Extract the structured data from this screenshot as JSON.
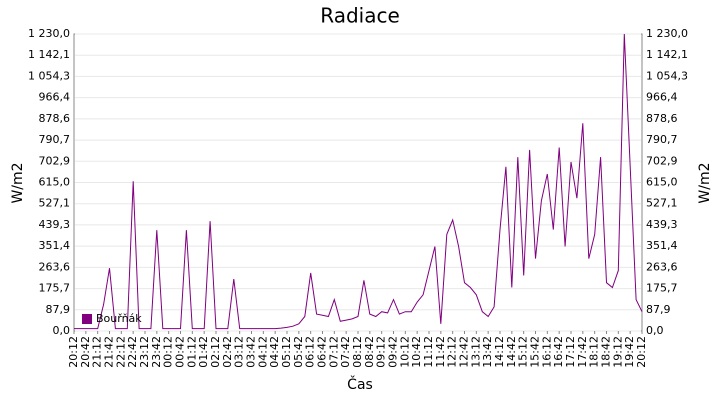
{
  "chart_data": {
    "type": "line",
    "title": "Radiace",
    "ylabel": "W/m2",
    "y2label": "W/m2",
    "xlabel": "Čas",
    "categories": [
      "20:12",
      null,
      "20:42",
      null,
      "21:12",
      null,
      "21:42",
      null,
      "22:12",
      null,
      "22:42",
      null,
      "23:12",
      null,
      "23:42",
      null,
      "00:12",
      null,
      "00:42",
      null,
      "01:12",
      null,
      "01:42",
      null,
      "02:12",
      null,
      "02:42",
      null,
      "03:12",
      null,
      "03:42",
      null,
      "04:12",
      null,
      "04:42",
      null,
      "05:12",
      null,
      "05:42",
      null,
      "06:12",
      null,
      "06:42",
      null,
      "07:12",
      null,
      "07:42",
      null,
      "08:12",
      null,
      "08:42",
      null,
      "09:12",
      null,
      "09:42",
      null,
      "10:12",
      null,
      "10:42",
      null,
      "11:12",
      null,
      "11:42",
      null,
      "12:12",
      null,
      "12:42",
      null,
      "13:12",
      null,
      "13:42",
      null,
      "14:12",
      null,
      "14:42",
      null,
      "15:12",
      null,
      "15:42",
      null,
      "16:12",
      null,
      "16:42",
      null,
      "17:12",
      null,
      "17:42",
      null,
      "18:12",
      null,
      "18:42",
      null,
      "19:12",
      null,
      "19:42",
      null,
      "20:12"
    ],
    "series": [
      {
        "name": "Bouřňák",
        "color": "#800080",
        "values": [
          10,
          10,
          10,
          10,
          10,
          110,
          260,
          10,
          10,
          10,
          620,
          10,
          10,
          10,
          418,
          10,
          10,
          10,
          10,
          418,
          10,
          10,
          10,
          455,
          10,
          10,
          10,
          215,
          10,
          10,
          10,
          10,
          10,
          10,
          10,
          12,
          15,
          20,
          30,
          60,
          240,
          70,
          65,
          60,
          130,
          40,
          45,
          50,
          60,
          210,
          70,
          60,
          80,
          75,
          130,
          70,
          80,
          80,
          120,
          150,
          250,
          350,
          30,
          400,
          460,
          350,
          200,
          180,
          150,
          80,
          60,
          100,
          420,
          680,
          180,
          720,
          230,
          750,
          300,
          540,
          650,
          420,
          760,
          350,
          700,
          550,
          860,
          300,
          400,
          720,
          200,
          180,
          250,
          1230,
          680,
          130,
          80
        ]
      }
    ],
    "ylim": [
      0,
      1230
    ],
    "yticks": [
      {
        "value": 0,
        "label": "0,0"
      },
      {
        "value": 87.9,
        "label": "87,9"
      },
      {
        "value": 175.7,
        "label": "175,7"
      },
      {
        "value": 263.6,
        "label": "263,6"
      },
      {
        "value": 351.4,
        "label": "351,4"
      },
      {
        "value": 439.3,
        "label": "439,3"
      },
      {
        "value": 527.1,
        "label": "527,1"
      },
      {
        "value": 615.0,
        "label": "615,0"
      },
      {
        "value": 702.9,
        "label": "702,9"
      },
      {
        "value": 790.7,
        "label": "790,7"
      },
      {
        "value": 878.6,
        "label": "878,6"
      },
      {
        "value": 966.4,
        "label": "966,4"
      },
      {
        "value": 1054.3,
        "label": "1 054,3"
      },
      {
        "value": 1142.1,
        "label": "1 142,1"
      },
      {
        "value": 1230.0,
        "label": "1 230,0"
      }
    ],
    "grid": true,
    "legend": "lower left"
  }
}
